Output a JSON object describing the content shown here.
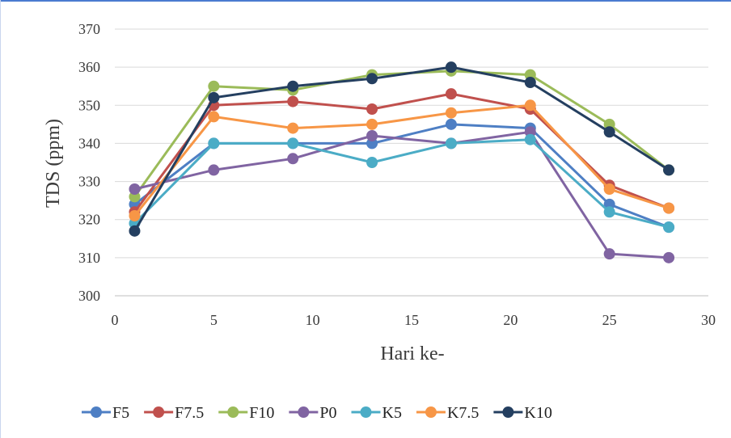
{
  "chart_data": {
    "type": "line",
    "xlabel": "Hari ke-",
    "ylabel": "TDS (ppm)",
    "xlim": [
      0,
      30
    ],
    "ylim": [
      300,
      370
    ],
    "xticks": [
      0,
      5,
      10,
      15,
      20,
      25,
      30
    ],
    "yticks": [
      300,
      310,
      320,
      330,
      340,
      350,
      360,
      370
    ],
    "grid": "horizontal",
    "legend_position": "bottom",
    "x": [
      1,
      5,
      9,
      13,
      17,
      21,
      25,
      28
    ],
    "series": [
      {
        "name": "F5",
        "color": "#4e7fc4",
        "values": [
          324,
          340,
          340,
          340,
          345,
          344,
          324,
          318
        ]
      },
      {
        "name": "F7.5",
        "color": "#c0504d",
        "values": [
          322,
          350,
          351,
          349,
          353,
          349,
          329,
          323
        ]
      },
      {
        "name": "F10",
        "color": "#9bbb59",
        "values": [
          326,
          355,
          354,
          358,
          359,
          358,
          345,
          333
        ]
      },
      {
        "name": "P0",
        "color": "#8064a2",
        "values": [
          328,
          333,
          336,
          342,
          340,
          343,
          311,
          310
        ]
      },
      {
        "name": "K5",
        "color": "#4bacc6",
        "values": [
          319,
          340,
          340,
          335,
          340,
          341,
          322,
          318
        ]
      },
      {
        "name": "K7.5",
        "color": "#f79646",
        "values": [
          321,
          347,
          344,
          345,
          348,
          350,
          328,
          323
        ]
      },
      {
        "name": "K10",
        "color": "#243f60",
        "values": [
          317,
          352,
          355,
          357,
          360,
          356,
          343,
          333
        ]
      }
    ]
  }
}
